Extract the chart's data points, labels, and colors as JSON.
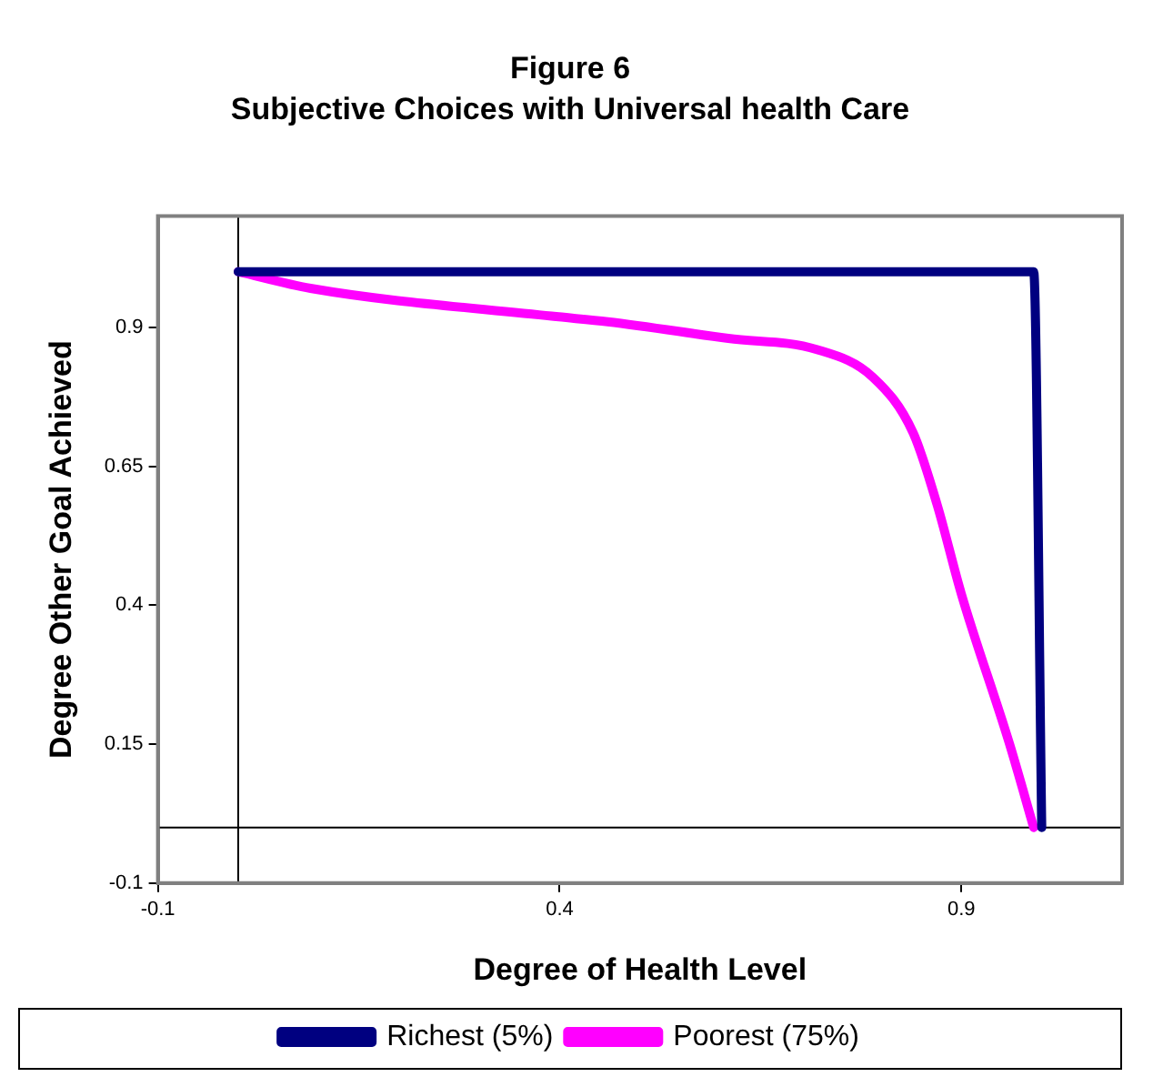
{
  "chart_data": {
    "type": "line",
    "title": "Figure 6",
    "subtitle": "Subjective Choices with Universal health Care",
    "xlabel": "Degree of Health Level",
    "ylabel": "Degree Other Goal Achieved",
    "series": [
      {
        "name": "Richest (5%)",
        "color": "#000080",
        "x": [
          0,
          0.99,
          1.0
        ],
        "values": [
          1.0,
          1.0,
          0
        ]
      },
      {
        "name": "Poorest (75%)",
        "color": "#ff00ff",
        "x": [
          0,
          0.09,
          0.39,
          0.46,
          0.61,
          0.72,
          0.79,
          0.84,
          0.87,
          0.9,
          0.96,
          0.99
        ],
        "values": [
          1.0,
          0.97,
          0.92,
          0.91,
          0.88,
          0.86,
          0.81,
          0.71,
          0.58,
          0.42,
          0.15,
          0
        ]
      }
    ],
    "xlim": [
      -0.1,
      1.1
    ],
    "xticks": [
      -0.1,
      0.4,
      0.9
    ],
    "ylim": [
      -0.1,
      1.1
    ],
    "yticks": [
      -0.1,
      0.15,
      0.4,
      0.65,
      0.9
    ],
    "grid": false,
    "legend": "bottom",
    "marker": "none",
    "line_style": "solid"
  }
}
